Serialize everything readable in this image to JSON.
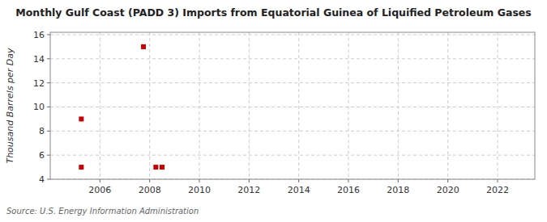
{
  "chart_data": {
    "type": "scatter",
    "title": "Monthly Gulf Coast (PADD 3) Imports from Equatorial Guinea of Liquified Petroleum Gases",
    "ylabel": "Thousand Barrels per Day",
    "source": "Source: U.S. Energy Information Administration",
    "x": [
      2005.25,
      2005.25,
      2007.75,
      2008.25,
      2008.5
    ],
    "values": [
      9,
      5,
      15,
      5,
      5
    ],
    "color": "#cc0000",
    "marker": "square",
    "xlim": [
      2004.0,
      2023.5
    ],
    "ylim": [
      4,
      16.2
    ],
    "xticks": [
      2006,
      2008,
      2010,
      2012,
      2014,
      2016,
      2018,
      2020,
      2022
    ],
    "yticks": [
      4,
      6,
      8,
      10,
      12,
      14,
      16
    ],
    "grid": true
  }
}
